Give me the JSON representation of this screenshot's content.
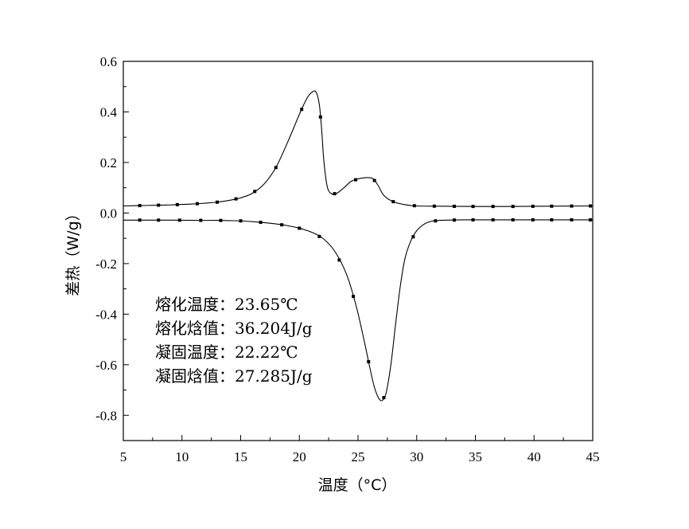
{
  "chart_data": {
    "type": "line",
    "xlabel": "温度（°C）",
    "ylabel": "差热（W/g）",
    "xlim": [
      5,
      45
    ],
    "ylim": [
      -0.9,
      0.6
    ],
    "xticks": [
      "5",
      "10",
      "15",
      "20",
      "25",
      "30",
      "35",
      "40",
      "45"
    ],
    "yticks": [
      "-0.8",
      "-0.6",
      "-0.4",
      "-0.2",
      "0.0",
      "0.2",
      "0.4",
      "0.6"
    ],
    "grid": false,
    "series": [
      {
        "points": [
          [
            5.0,
            0.028
          ],
          [
            6.0,
            0.029
          ],
          [
            7.0,
            0.03
          ],
          [
            8.0,
            0.031
          ],
          [
            9.0,
            0.032
          ],
          [
            10.0,
            0.034
          ],
          [
            11.0,
            0.036
          ],
          [
            12.0,
            0.039
          ],
          [
            13.0,
            0.043
          ],
          [
            14.0,
            0.05
          ],
          [
            15.0,
            0.06
          ],
          [
            16.0,
            0.078
          ],
          [
            17.0,
            0.115
          ],
          [
            18.0,
            0.18
          ],
          [
            19.0,
            0.28
          ],
          [
            20.0,
            0.39
          ],
          [
            20.6,
            0.45
          ],
          [
            21.0,
            0.475
          ],
          [
            21.4,
            0.48
          ],
          [
            21.7,
            0.43
          ],
          [
            21.9,
            0.33
          ],
          [
            22.1,
            0.2
          ],
          [
            22.4,
            0.1
          ],
          [
            22.8,
            0.075
          ],
          [
            23.2,
            0.078
          ],
          [
            23.8,
            0.1
          ],
          [
            24.4,
            0.125
          ],
          [
            25.0,
            0.135
          ],
          [
            25.8,
            0.14
          ],
          [
            26.3,
            0.135
          ],
          [
            26.7,
            0.11
          ],
          [
            27.2,
            0.07
          ],
          [
            28.0,
            0.045
          ],
          [
            29.0,
            0.033
          ],
          [
            30.0,
            0.028
          ],
          [
            32.0,
            0.027
          ],
          [
            35.0,
            0.026
          ],
          [
            38.0,
            0.026
          ],
          [
            41.0,
            0.027
          ],
          [
            45.0,
            0.028
          ]
        ],
        "markers_x": [
          6.4,
          8.0,
          9.6,
          11.3,
          13.0,
          14.6,
          16.2,
          18.0,
          20.2,
          21.8,
          23.0,
          24.8,
          26.4,
          28.0,
          29.8,
          31.5,
          33.2,
          34.8,
          36.5,
          38.2,
          39.9,
          41.5,
          43.2,
          44.8
        ]
      },
      {
        "points": [
          [
            5.0,
            -0.028
          ],
          [
            7.0,
            -0.028
          ],
          [
            9.0,
            -0.028
          ],
          [
            11.0,
            -0.029
          ],
          [
            13.0,
            -0.029
          ],
          [
            14.0,
            -0.03
          ],
          [
            15.0,
            -0.031
          ],
          [
            16.0,
            -0.034
          ],
          [
            17.0,
            -0.038
          ],
          [
            18.0,
            -0.043
          ],
          [
            19.0,
            -0.05
          ],
          [
            20.0,
            -0.06
          ],
          [
            21.0,
            -0.075
          ],
          [
            22.0,
            -0.1
          ],
          [
            23.0,
            -0.15
          ],
          [
            24.0,
            -0.24
          ],
          [
            24.8,
            -0.36
          ],
          [
            25.5,
            -0.5
          ],
          [
            26.0,
            -0.61
          ],
          [
            26.4,
            -0.69
          ],
          [
            26.8,
            -0.735
          ],
          [
            27.1,
            -0.74
          ],
          [
            27.4,
            -0.71
          ],
          [
            27.8,
            -0.6
          ],
          [
            28.2,
            -0.44
          ],
          [
            28.6,
            -0.29
          ],
          [
            29.0,
            -0.18
          ],
          [
            29.5,
            -0.11
          ],
          [
            30.0,
            -0.07
          ],
          [
            30.6,
            -0.045
          ],
          [
            31.2,
            -0.033
          ],
          [
            32.0,
            -0.029
          ],
          [
            34.0,
            -0.027
          ],
          [
            37.0,
            -0.027
          ],
          [
            40.0,
            -0.027
          ],
          [
            45.0,
            -0.027
          ]
        ],
        "markers_x": [
          6.4,
          8.0,
          9.8,
          11.6,
          13.3,
          15.0,
          16.7,
          18.5,
          20.0,
          21.7,
          23.4,
          24.6,
          25.9,
          27.2,
          29.7,
          31.6,
          33.2,
          34.8,
          36.5,
          38.2,
          39.9,
          41.5,
          43.2,
          44.8
        ]
      }
    ],
    "annotations": [
      "熔化温度：23.65℃",
      "熔化焓值：36.204J/g",
      "凝固温度：22.22℃",
      "凝固焓值：27.285J/g"
    ]
  }
}
